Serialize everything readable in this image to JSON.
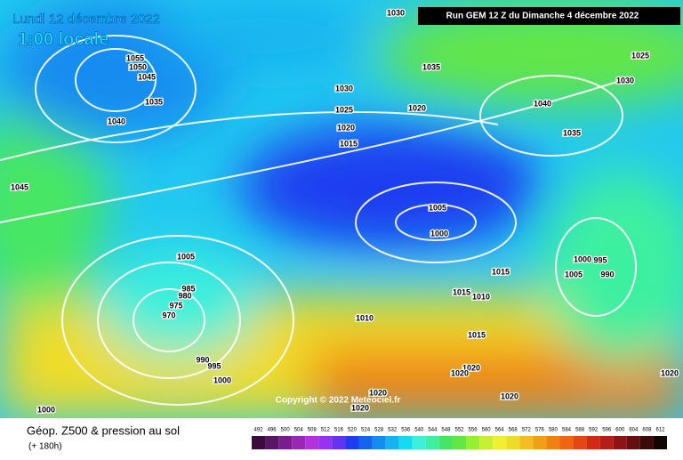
{
  "header": {
    "date": "Lundi 12 décembre 2022",
    "time": "1:00 locale",
    "run": "Run GEM 12 Z du Dimanche 4 décembre 2022"
  },
  "isobar_labels": [
    1030,
    1055,
    1050,
    1045,
    1035,
    1040,
    1035,
    1030,
    1025,
    1020,
    1020,
    1015,
    1025,
    1030,
    1040,
    1035,
    1045,
    1005,
    1000,
    1005,
    1000,
    995,
    990,
    1005,
    1015,
    1015,
    1010,
    985,
    980,
    975,
    970,
    1010,
    1015,
    990,
    995,
    1000,
    1020,
    1020,
    1020,
    1020,
    1020,
    1020,
    1000
  ],
  "copyright": "Copyright © 2022 Meteociel.fr",
  "footer": {
    "title": "Géop. Z500 & pression au sol",
    "lead": "(+ 180h)"
  },
  "scale": {
    "values": [
      492,
      496,
      500,
      504,
      508,
      512,
      516,
      520,
      524,
      528,
      532,
      536,
      540,
      544,
      548,
      552,
      556,
      560,
      564,
      568,
      572,
      576,
      580,
      584,
      588,
      592,
      596,
      600,
      604,
      608,
      612
    ],
    "colors": [
      "#3c0a3c",
      "#5a1464",
      "#781e8c",
      "#9628b4",
      "#b432dc",
      "#9632f0",
      "#6432f0",
      "#1e3cf0",
      "#1464f0",
      "#148cf0",
      "#14b4f0",
      "#14dcf0",
      "#3cf0dc",
      "#3cf0a0",
      "#46e664",
      "#64e646",
      "#96f032",
      "#c8f032",
      "#f0f032",
      "#f0dc28",
      "#f0be1e",
      "#f0a014",
      "#f08214",
      "#f06414",
      "#e64614",
      "#d22814",
      "#b41e14",
      "#8c1414",
      "#641010",
      "#3c0a0a",
      "#140505"
    ]
  }
}
